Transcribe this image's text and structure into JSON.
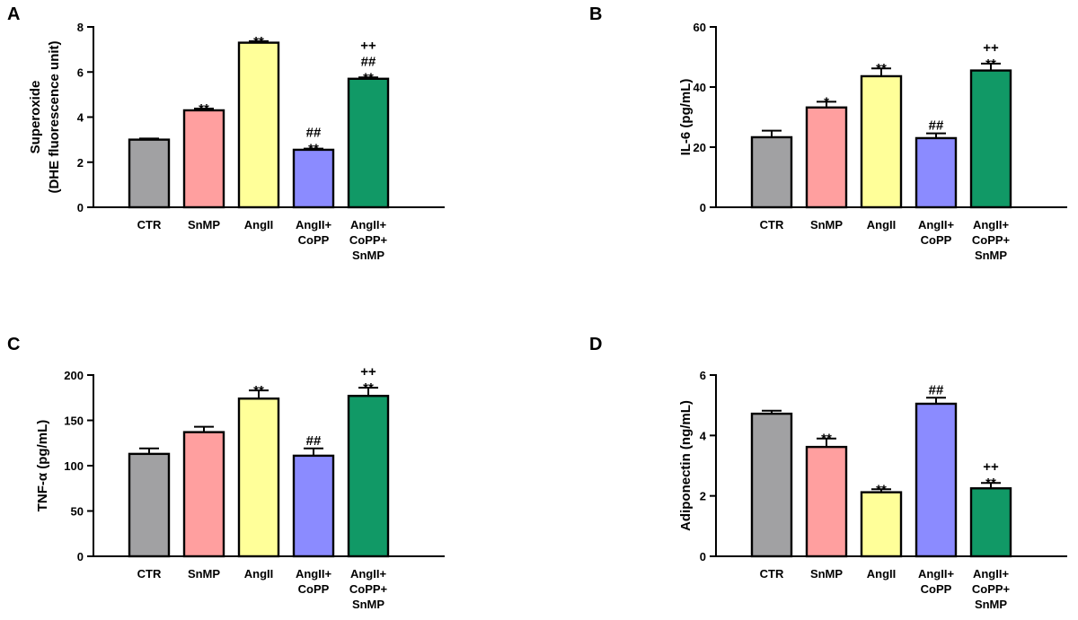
{
  "colors": [
    "#a1a1a3",
    "#ff9f9f",
    "#ffff99",
    "#8b8bff",
    "#119966"
  ],
  "chart_data": [
    {
      "panel": "A",
      "type": "bar",
      "categories": [
        [
          "CTR"
        ],
        [
          "SnMP"
        ],
        [
          "AngII"
        ],
        [
          "AngII+",
          "CoPP"
        ],
        [
          "AngII+",
          "CoPP+",
          "SnMP"
        ]
      ],
      "values": [
        3.0,
        4.3,
        7.3,
        2.55,
        5.7
      ],
      "errors": [
        0.05,
        0.08,
        0.07,
        0.05,
        0.06
      ],
      "annotations": [
        [],
        [
          "**"
        ],
        [
          "**"
        ],
        [
          "##",
          "**"
        ],
        [
          "++",
          "##",
          "**"
        ]
      ],
      "ylabel": [
        "Superoxide",
        "(DHE fluorescence unit)"
      ],
      "ylim": [
        0,
        8
      ],
      "yticks": [
        0,
        2,
        4,
        6,
        8
      ]
    },
    {
      "panel": "B",
      "type": "bar",
      "categories": [
        [
          "CTR"
        ],
        [
          "SnMP"
        ],
        [
          "AngII"
        ],
        [
          "AngII+",
          "CoPP"
        ],
        [
          "AngII+",
          "CoPP+",
          "SnMP"
        ]
      ],
      "values": [
        23.3,
        33.2,
        43.6,
        23.0,
        45.5
      ],
      "errors": [
        2.2,
        1.9,
        2.6,
        1.6,
        2.3
      ],
      "annotations": [
        [],
        [
          "*"
        ],
        [
          "**"
        ],
        [
          "##"
        ],
        [
          "++",
          "**"
        ]
      ],
      "ylabel": [
        "IL-6 (pg/mL)"
      ],
      "ylim": [
        0,
        60
      ],
      "yticks": [
        0,
        20,
        40,
        60
      ]
    },
    {
      "panel": "C",
      "type": "bar",
      "categories": [
        [
          "CTR"
        ],
        [
          "SnMP"
        ],
        [
          "AngII"
        ],
        [
          "AngII+",
          "CoPP"
        ],
        [
          "AngII+",
          "CoPP+",
          "SnMP"
        ]
      ],
      "values": [
        113,
        137,
        174,
        111,
        177
      ],
      "errors": [
        6,
        6,
        9,
        8,
        9
      ],
      "annotations": [
        [],
        [],
        [
          "**"
        ],
        [
          "##"
        ],
        [
          "++",
          "**"
        ]
      ],
      "ylabel": [
        "TNF-α (pg/mL)"
      ],
      "ylim": [
        0,
        200
      ],
      "yticks": [
        0,
        50,
        100,
        150,
        200
      ]
    },
    {
      "panel": "D",
      "type": "bar",
      "categories": [
        [
          "CTR"
        ],
        [
          "SnMP"
        ],
        [
          "AngII"
        ],
        [
          "AngII+",
          "CoPP"
        ],
        [
          "AngII+",
          "CoPP+",
          "SnMP"
        ]
      ],
      "values": [
        4.72,
        3.62,
        2.12,
        5.05,
        2.25
      ],
      "errors": [
        0.1,
        0.28,
        0.1,
        0.2,
        0.18
      ],
      "annotations": [
        [],
        [
          "**"
        ],
        [
          "**"
        ],
        [
          "##"
        ],
        [
          "++",
          "**"
        ]
      ],
      "ylabel": [
        "Adiponectin (ng/mL)"
      ],
      "ylim": [
        0,
        6
      ],
      "yticks": [
        0,
        2,
        4,
        6
      ]
    }
  ]
}
